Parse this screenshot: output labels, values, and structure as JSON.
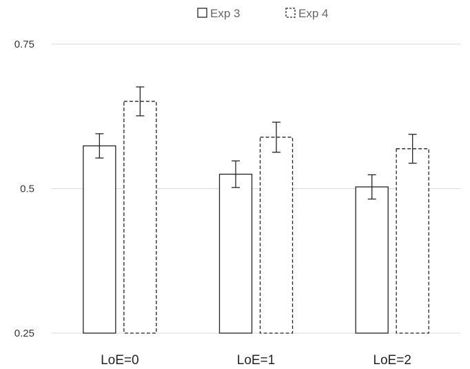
{
  "chart_data": {
    "type": "bar",
    "title": "",
    "xlabel": "",
    "ylabel": "",
    "categories": [
      "LoE=0",
      "LoE=1",
      "LoE=2"
    ],
    "series": [
      {
        "name": "Exp 3",
        "style": "solid",
        "values": [
          0.574,
          0.525,
          0.503
        ],
        "error": [
          0.021,
          0.023,
          0.021
        ]
      },
      {
        "name": "Exp 4",
        "style": "dashed",
        "values": [
          0.651,
          0.589,
          0.569
        ],
        "error": [
          0.025,
          0.026,
          0.025
        ]
      }
    ],
    "ylim": [
      0.25,
      0.75
    ],
    "yticks": [
      0.25,
      0.5,
      0.75
    ],
    "ytick_labels": [
      "0.25",
      "0.5",
      "0.75"
    ],
    "grid": true,
    "legend_position": "top"
  }
}
